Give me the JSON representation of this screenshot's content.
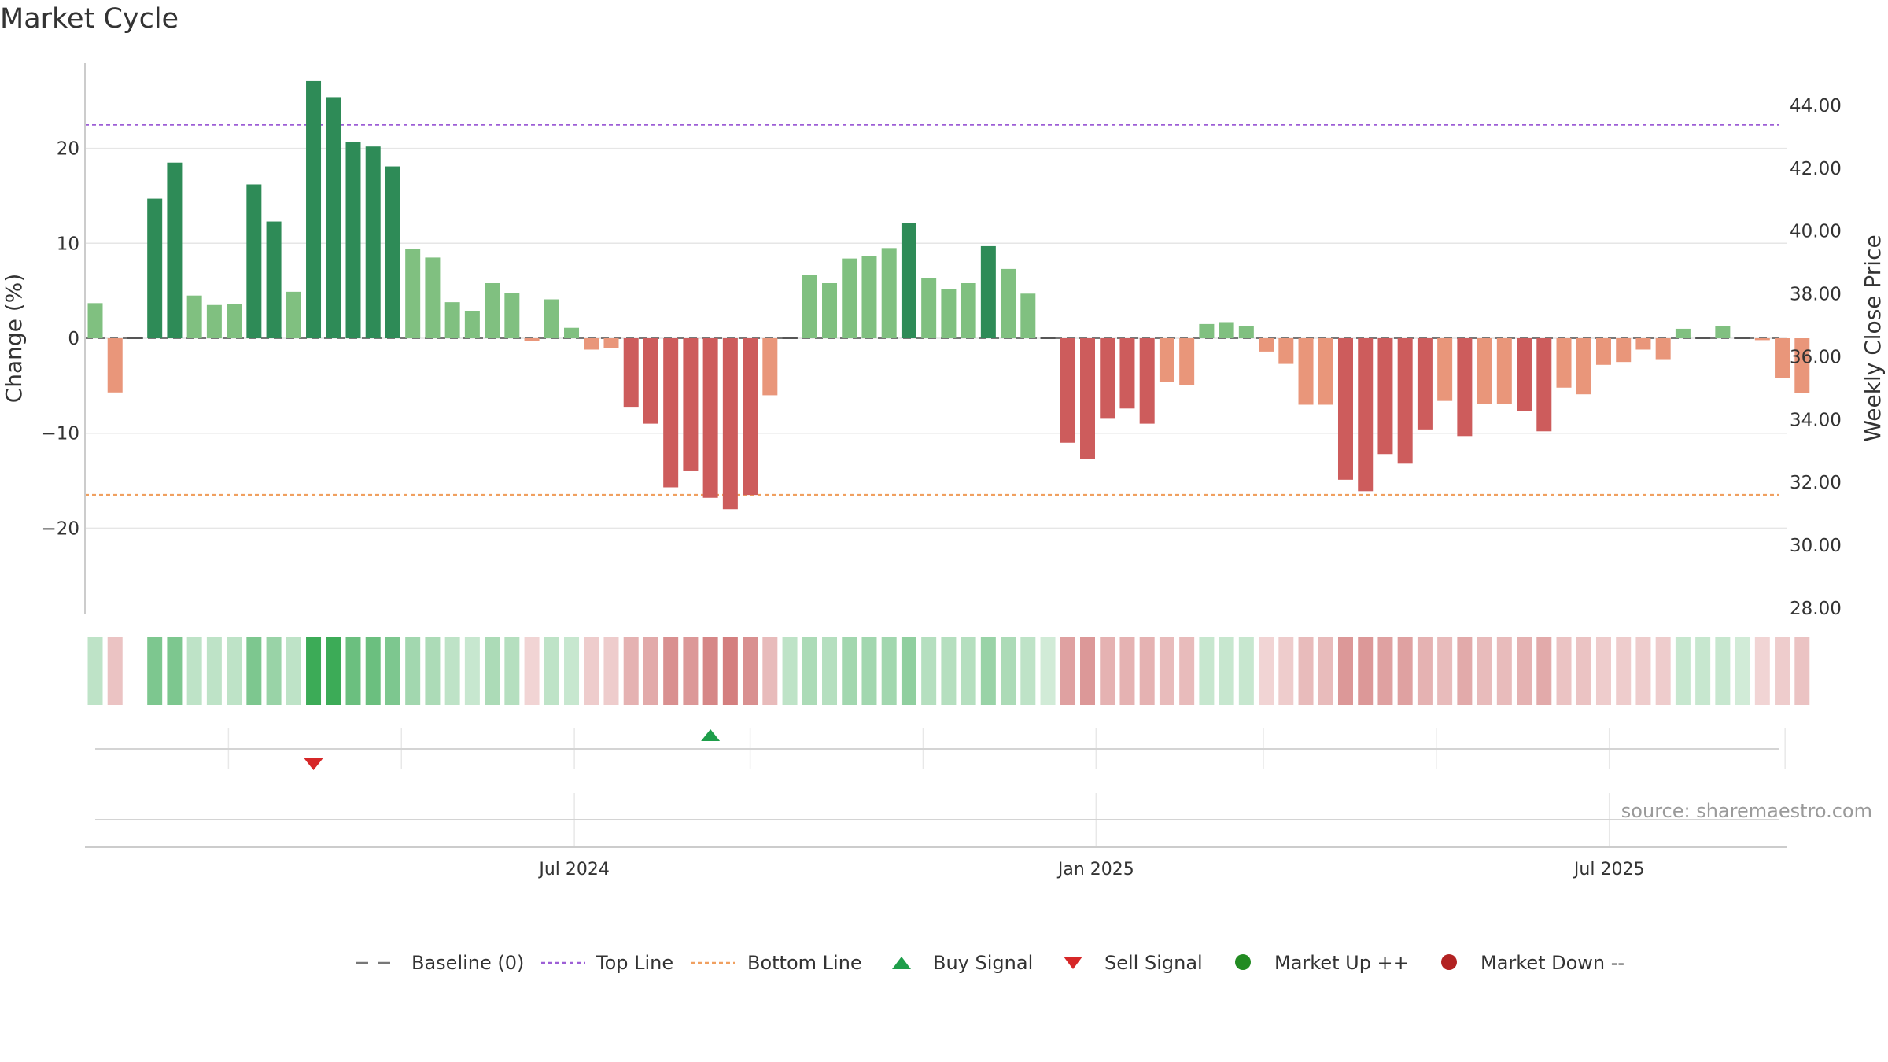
{
  "title": "Market Cycle",
  "source": "source: sharemaestro.com",
  "chart_data": {
    "type": "bar",
    "title": "Market Cycle",
    "ylabel": "Change (%)",
    "y2label": "Weekly Close Price",
    "ylim": [
      -29,
      29
    ],
    "y2lim": [
      28,
      44.6
    ],
    "yticks": [
      -20,
      -10,
      0,
      10,
      20
    ],
    "yticklabels": [
      "−20",
      "−10",
      "0",
      "10",
      "20"
    ],
    "y2ticks": [
      28,
      30,
      32,
      34,
      36,
      38,
      40,
      42,
      44
    ],
    "y2ticklabels": [
      "28.00",
      "30.00",
      "32.00",
      "34.00",
      "36.00",
      "38.00",
      "40.00",
      "42.00",
      "44.00"
    ],
    "xticklabels": [
      "Jul 2024",
      "Jan 2025",
      "Jul 2025"
    ],
    "x_start": "2024-01-14",
    "reference_lines": {
      "baseline": 0,
      "top_line": 22.5,
      "bottom_line": -16.5
    },
    "values": [
      3.7,
      -5.7,
      0,
      14.7,
      18.5,
      4.5,
      3.5,
      3.6,
      16.2,
      12.3,
      4.9,
      27.1,
      25.4,
      20.7,
      20.2,
      18.1,
      9.4,
      8.5,
      3.8,
      2.9,
      5.8,
      4.8,
      -0.3,
      4.1,
      1.1,
      -1.2,
      -1.0,
      -7.3,
      -9.0,
      -15.7,
      -14.0,
      -16.8,
      -18.0,
      -16.5,
      -6.0,
      0,
      6.7,
      5.8,
      8.4,
      8.7,
      9.5,
      12.1,
      6.3,
      5.2,
      5.8,
      9.7,
      7.3,
      4.7,
      0,
      -11.0,
      -12.7,
      -8.4,
      -7.4,
      -9.0,
      -4.6,
      -4.9,
      1.5,
      1.7,
      1.3,
      -1.4,
      -2.7,
      -7.0,
      -7.0,
      -14.9,
      -16.1,
      -12.2,
      -13.2,
      -9.6,
      -6.6,
      -10.3,
      -6.9,
      -6.9,
      -7.7,
      -9.8,
      -5.2,
      -5.9,
      -2.8,
      -2.5,
      -1.2,
      -2.2,
      1.0,
      0,
      1.3,
      0,
      -0.2,
      -4.2,
      -5.8
    ],
    "strength": [
      0.35,
      0.35,
      0,
      0.7,
      0.7,
      0.35,
      0.35,
      0.35,
      0.7,
      0.55,
      0.35,
      1.0,
      1.0,
      0.8,
      0.8,
      0.7,
      0.5,
      0.45,
      0.35,
      0.3,
      0.45,
      0.4,
      0.25,
      0.35,
      0.3,
      0.3,
      0.3,
      0.45,
      0.5,
      0.65,
      0.6,
      0.7,
      0.75,
      0.65,
      0.4,
      0.35,
      0.45,
      0.4,
      0.5,
      0.5,
      0.5,
      0.6,
      0.4,
      0.4,
      0.4,
      0.55,
      0.45,
      0.35,
      0.25,
      0.55,
      0.6,
      0.45,
      0.45,
      0.45,
      0.4,
      0.4,
      0.3,
      0.3,
      0.3,
      0.25,
      0.3,
      0.4,
      0.4,
      0.6,
      0.6,
      0.55,
      0.55,
      0.45,
      0.4,
      0.5,
      0.4,
      0.4,
      0.45,
      0.5,
      0.35,
      0.35,
      0.3,
      0.3,
      0.3,
      0.3,
      0.3,
      0.3,
      0.3,
      0.25,
      0.25,
      0.3,
      0.35
    ],
    "signals": [
      {
        "type": "sell",
        "index": 11
      },
      {
        "type": "buy",
        "index": 31
      }
    ],
    "colors": {
      "up_strong": "#2e8b57",
      "up_light": "#80c080",
      "down_strong": "#cd5c5c",
      "down_light": "#e9967a",
      "top_line": "#9d5fd6",
      "bottom_line": "#f0a060",
      "baseline": "#777777",
      "buy": "#1e9e4a",
      "sell": "#d62728",
      "market_up": "#228b22",
      "market_down": "#b22222",
      "grid": "#e6e6e6",
      "axis": "#cccccc"
    },
    "legend_position": "bottom-center",
    "legend": [
      {
        "label": "Baseline (0)",
        "marker": "dash"
      },
      {
        "label": "Top Line",
        "marker": "dot-purple"
      },
      {
        "label": "Bottom Line",
        "marker": "dot-orange"
      },
      {
        "label": "Buy Signal",
        "marker": "triangle-up"
      },
      {
        "label": "Sell Signal",
        "marker": "triangle-down"
      },
      {
        "label": "Market Up ++",
        "marker": "circle-green"
      },
      {
        "label": "Market Down --",
        "marker": "circle-red"
      }
    ]
  }
}
